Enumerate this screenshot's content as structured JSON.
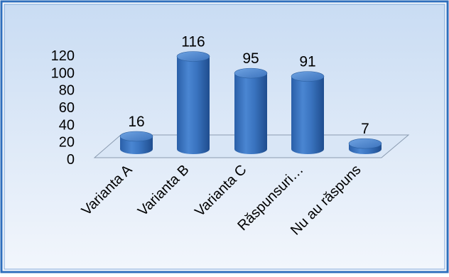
{
  "chart_data": {
    "type": "bar",
    "style": "3d-cylinder",
    "categories": [
      "Varianta A",
      "Varianta B",
      "Varianta C",
      "Răspunsuri…",
      "Nu au răspuns"
    ],
    "values": [
      16,
      116,
      95,
      91,
      7
    ],
    "data_labels": [
      "16",
      "116",
      "95",
      "91",
      "7"
    ],
    "ylim": [
      0,
      120
    ],
    "y_ticks": [
      0,
      20,
      40,
      60,
      80,
      100,
      120
    ],
    "y_tick_labels": [
      "0",
      "20",
      "40",
      "60",
      "80",
      "100",
      "120"
    ],
    "grid": false,
    "legend": "none",
    "colors": {
      "bar": "#3f78c4",
      "bar_dark": "#22508f",
      "bar_top": "#5a93d8",
      "background_top": "#cfe0f5",
      "background_bottom": "#eef4fb",
      "frame": "#2f6fbd"
    }
  }
}
